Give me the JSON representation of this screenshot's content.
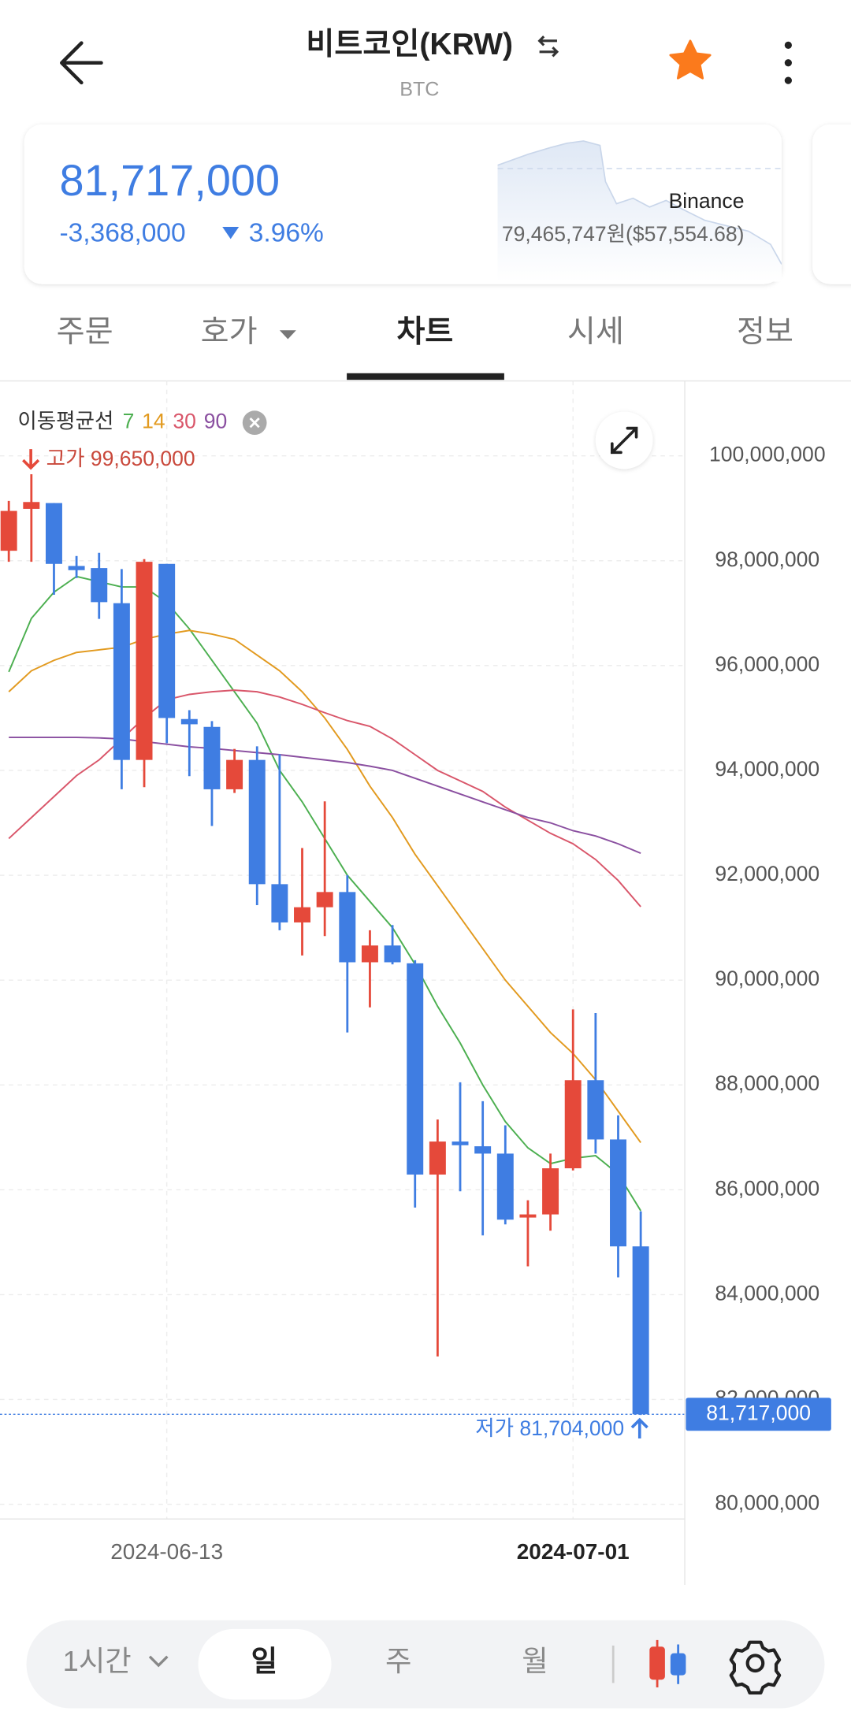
{
  "header": {
    "title": "비트코인(KRW)",
    "subtitle": "BTC"
  },
  "price_card": {
    "price": "81,717,000",
    "change": "-3,368,000",
    "change_rate": "3.96%",
    "exchange": "Binance",
    "exchange_price": "79,465,747원($57,554.68)"
  },
  "tabs": [
    "주문",
    "호가",
    "차트",
    "시세",
    "정보"
  ],
  "chart_data": {
    "type": "candlestick",
    "legend_title": "이동평균선",
    "categories": [
      null,
      null,
      null,
      null,
      null,
      null,
      null,
      "2024-06-13",
      null,
      null,
      null,
      null,
      null,
      null,
      null,
      null,
      null,
      null,
      null,
      null,
      null,
      null,
      null,
      null,
      null,
      "2024-07-01",
      null,
      null,
      null
    ],
    "open": [
      98190000,
      98990000,
      99100000,
      97900000,
      97860000,
      97190000,
      94200000,
      97940000,
      94980000,
      94830000,
      93640000,
      94200000,
      91830000,
      91100000,
      91390000,
      91680000,
      90340000,
      90660000,
      90320000,
      86290000,
      86920000,
      86830000,
      86690000,
      85470000,
      85530000,
      86410000,
      88090000,
      86960000,
      84920000
    ],
    "high": [
      99140000,
      99650000,
      99100000,
      98090000,
      98150000,
      97840000,
      98030000,
      97940000,
      95150000,
      94940000,
      94410000,
      94460000,
      94310000,
      92520000,
      93410000,
      92000000,
      90950000,
      91050000,
      90380000,
      87340000,
      88050000,
      87690000,
      87230000,
      85800000,
      86690000,
      89440000,
      89370000,
      87420000,
      85590000
    ],
    "low": [
      97980000,
      97980000,
      97350000,
      97670000,
      96890000,
      93640000,
      93680000,
      94520000,
      93890000,
      92940000,
      93570000,
      91430000,
      90950000,
      90470000,
      90840000,
      89000000,
      89480000,
      90300000,
      85660000,
      82820000,
      85970000,
      85130000,
      85340000,
      84540000,
      85220000,
      86370000,
      86690000,
      84330000,
      81704000
    ],
    "close": [
      98950000,
      99120000,
      97940000,
      97820000,
      97210000,
      94200000,
      97980000,
      95000000,
      94880000,
      93640000,
      94200000,
      91830000,
      91100000,
      91390000,
      91680000,
      90340000,
      90660000,
      90340000,
      86290000,
      86920000,
      86850000,
      86690000,
      85430000,
      85530000,
      86410000,
      88090000,
      86960000,
      84920000,
      81717000
    ],
    "up_color": "#e5493a",
    "down_color": "#3f7de2",
    "series": [
      {
        "name": "7",
        "color": "#4caf50",
        "values": [
          95880000,
          96900000,
          97400000,
          97700000,
          97600000,
          97500000,
          97500000,
          97200000,
          96700000,
          96100000,
          95500000,
          94900000,
          94000000,
          93400000,
          92700000,
          92000000,
          91500000,
          91000000,
          90300000,
          89500000,
          88800000,
          88000000,
          87300000,
          86800000,
          86500000,
          86600000,
          86650000,
          86300000,
          85600000
        ]
      },
      {
        "name": "14",
        "color": "#e29a1f",
        "values": [
          95500000,
          95900000,
          96100000,
          96250000,
          96300000,
          96350000,
          96500000,
          96600000,
          96670000,
          96600000,
          96500000,
          96200000,
          95900000,
          95500000,
          95000000,
          94400000,
          93700000,
          93100000,
          92400000,
          91800000,
          91200000,
          90600000,
          90000000,
          89500000,
          89000000,
          88600000,
          88100000,
          87500000,
          86900000
        ]
      },
      {
        "name": "30",
        "color": "#d9566a",
        "values": [
          92700000,
          93100000,
          93500000,
          93900000,
          94200000,
          94600000,
          95000000,
          95350000,
          95450000,
          95500000,
          95530000,
          95500000,
          95400000,
          95260000,
          95100000,
          94950000,
          94840000,
          94600000,
          94300000,
          94000000,
          93800000,
          93600000,
          93300000,
          93050000,
          92800000,
          92600000,
          92300000,
          91900000,
          91400000
        ]
      },
      {
        "name": "90",
        "color": "#8a4fa0",
        "values": [
          94630000,
          94630000,
          94630000,
          94630000,
          94620000,
          94600000,
          94550000,
          94500000,
          94450000,
          94420000,
          94380000,
          94340000,
          94300000,
          94250000,
          94200000,
          94150000,
          94080000,
          94000000,
          93850000,
          93700000,
          93550000,
          93400000,
          93250000,
          93100000,
          93000000,
          92850000,
          92750000,
          92600000,
          92420000
        ]
      }
    ],
    "ylim": [
      79720000,
      101430000
    ],
    "yticks": [
      {
        "value": 80000000,
        "label": "80,000,000"
      },
      {
        "value": 82000000,
        "label": "82,000,000"
      },
      {
        "value": 84000000,
        "label": "84,000,000"
      },
      {
        "value": 86000000,
        "label": "86,000,000"
      },
      {
        "value": 88000000,
        "label": "88,000,000"
      },
      {
        "value": 90000000,
        "label": "90,000,000"
      },
      {
        "value": 92000000,
        "label": "92,000,000"
      },
      {
        "value": 94000000,
        "label": "94,000,000"
      },
      {
        "value": 96000000,
        "label": "96,000,000"
      },
      {
        "value": 98000000,
        "label": "98,000,000"
      },
      {
        "value": 100000000,
        "label": "100,000,000"
      }
    ],
    "grid": true,
    "high_annotation": "고가 99,650,000",
    "low_annotation": "저가 81,704,000",
    "current_price": {
      "value": 81717000,
      "label": "81,717,000"
    }
  },
  "bottom_bar": {
    "interval": "1시간",
    "periods": [
      "일",
      "주",
      "월"
    ]
  }
}
